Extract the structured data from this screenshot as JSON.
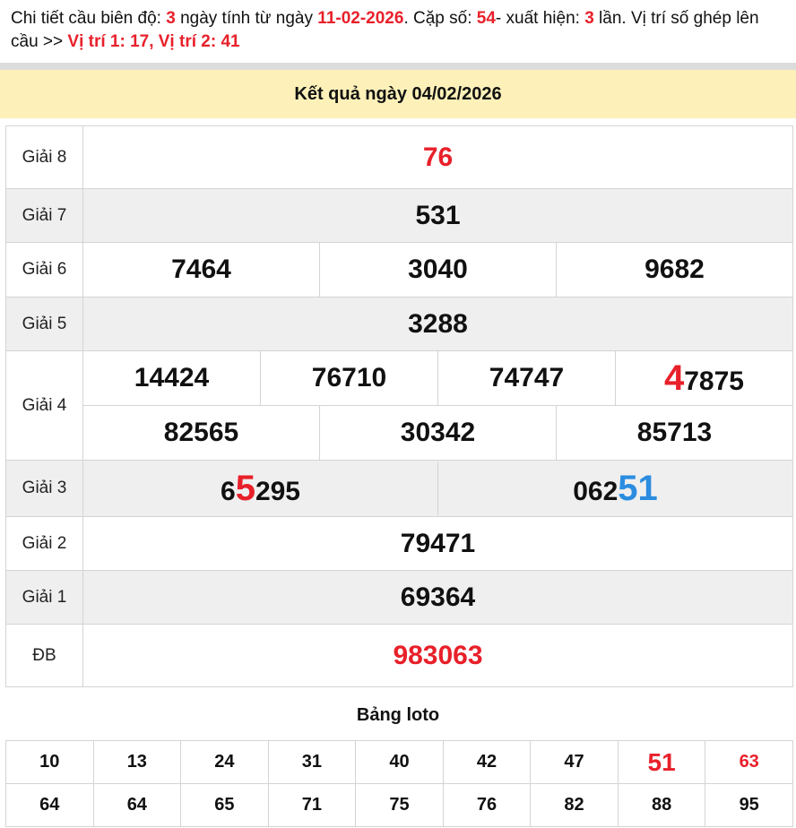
{
  "intro": {
    "t1": "Chi tiết cầu biên độ: ",
    "days": "3",
    "t2": " ngày tính từ ngày ",
    "date": "11-02-2026",
    "t3": ". Cặp số: ",
    "pair": "54",
    "t4": "- xuất hiện: ",
    "count": "3",
    "t5": " lần. Vị trí số ghép lên cầu >> ",
    "positions": "Vị trí 1: 17, Vị trí 2: 41"
  },
  "header": "Kết quả ngày 04/02/2026",
  "labels": {
    "g8": "Giải 8",
    "g7": "Giải 7",
    "g6": "Giải 6",
    "g5": "Giải 5",
    "g4": "Giải 4",
    "g3": "Giải 3",
    "g2": "Giải 2",
    "g1": "Giải 1",
    "db": "ĐB"
  },
  "results": {
    "g8": "76",
    "g7": "531",
    "g6": [
      "7464",
      "3040",
      "9682"
    ],
    "g5": "3288",
    "g4": {
      "row1": [
        "14424",
        "76710",
        "74747"
      ],
      "r1c4": {
        "hl": "4",
        "rest": "7875"
      },
      "row2": [
        "82565",
        "30342",
        "85713"
      ]
    },
    "g3": [
      {
        "pre": "6",
        "hl": "5",
        "post": "295"
      },
      {
        "pre": "062",
        "hl": "51",
        "post": ""
      }
    ],
    "g2": "79471",
    "g1": "69364",
    "db": "983063"
  },
  "colors": {
    "highlight_red": "#e8202a",
    "highlight_blue": "#2b8ce0",
    "header_bg": "#fdf1b9"
  },
  "loto": {
    "title": "Bảng loto",
    "row1": [
      "10",
      "13",
      "24",
      "31",
      "40",
      "42",
      "47",
      "51",
      "63"
    ],
    "row2": [
      "64",
      "64",
      "65",
      "71",
      "75",
      "76",
      "82",
      "88",
      "95"
    ]
  }
}
